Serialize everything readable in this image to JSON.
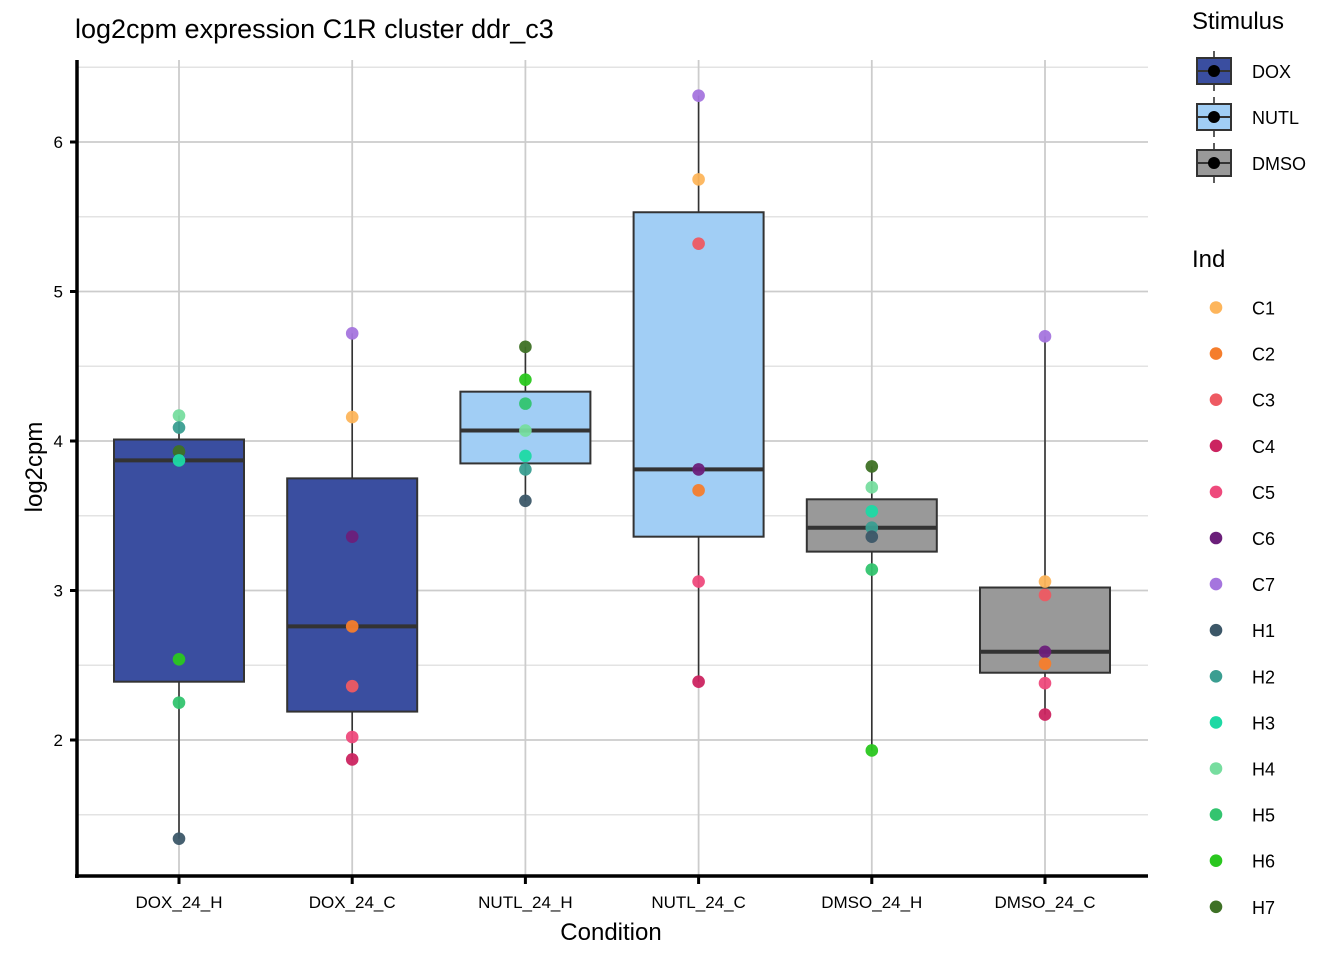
{
  "chart_data": {
    "type": "box",
    "title": "log2cpm expression C1R cluster ddr_c3",
    "xlabel": "Condition",
    "ylabel": "log2cpm",
    "ylim": [
      1.1,
      6.55
    ],
    "yticks": [
      2,
      3,
      4,
      5,
      6
    ],
    "ytick_labels": [
      "2",
      "3",
      "4",
      "5",
      "6"
    ],
    "grid": true,
    "categories": [
      "DOX_24_H",
      "DOX_24_C",
      "NUTL_24_H",
      "NUTL_24_C",
      "DMSO_24_H",
      "DMSO_24_C"
    ],
    "fill_legend": {
      "title": "Stimulus",
      "placement": "right",
      "entries": [
        {
          "label": "DOX",
          "color": "#3A4EA0"
        },
        {
          "label": "NUTL",
          "color": "#A1CEF5"
        },
        {
          "label": "DMSO",
          "color": "#999999"
        }
      ]
    },
    "color_legend": {
      "title": "Ind",
      "placement": "right",
      "entries": [
        {
          "label": "C1",
          "color": "#FDB55B"
        },
        {
          "label": "C2",
          "color": "#F57D2C"
        },
        {
          "label": "C3",
          "color": "#EE5A62"
        },
        {
          "label": "C4",
          "color": "#CB2460"
        },
        {
          "label": "C5",
          "color": "#EE4A7C"
        },
        {
          "label": "C6",
          "color": "#6B1F7A"
        },
        {
          "label": "C7",
          "color": "#A575DE"
        },
        {
          "label": "H1",
          "color": "#3C5768"
        },
        {
          "label": "H2",
          "color": "#3A9E91"
        },
        {
          "label": "H3",
          "color": "#1ED9A4"
        },
        {
          "label": "H4",
          "color": "#77DD9F"
        },
        {
          "label": "H5",
          "color": "#33C46F"
        },
        {
          "label": "H6",
          "color": "#2AC71F"
        },
        {
          "label": "H7",
          "color": "#3E7125"
        }
      ]
    },
    "boxes": [
      {
        "category": "DOX_24_H",
        "stimulus": "DOX",
        "q1": 2.39,
        "median": 3.87,
        "q3": 4.01,
        "whisker_low": 1.34,
        "whisker_high": 4.17
      },
      {
        "category": "DOX_24_C",
        "stimulus": "DOX",
        "q1": 2.19,
        "median": 2.76,
        "q3": 3.75,
        "whisker_low": 1.87,
        "whisker_high": 4.72
      },
      {
        "category": "NUTL_24_H",
        "stimulus": "NUTL",
        "q1": 3.85,
        "median": 4.07,
        "q3": 4.33,
        "whisker_low": 3.6,
        "whisker_high": 4.63
      },
      {
        "category": "NUTL_24_C",
        "stimulus": "NUTL",
        "q1": 3.36,
        "median": 3.81,
        "q3": 5.53,
        "whisker_low": 2.39,
        "whisker_high": 6.31
      },
      {
        "category": "DMSO_24_H",
        "stimulus": "DMSO",
        "q1": 3.26,
        "median": 3.42,
        "q3": 3.61,
        "whisker_low": 1.93,
        "whisker_high": 3.83
      },
      {
        "category": "DMSO_24_C",
        "stimulus": "DMSO",
        "q1": 2.45,
        "median": 2.59,
        "q3": 3.02,
        "whisker_low": 2.17,
        "whisker_high": 4.7
      }
    ],
    "points": [
      {
        "category": "DOX_24_H",
        "ind": "H4",
        "y": 4.17
      },
      {
        "category": "DOX_24_H",
        "ind": "H2",
        "y": 4.09
      },
      {
        "category": "DOX_24_H",
        "ind": "H7",
        "y": 3.93
      },
      {
        "category": "DOX_24_H",
        "ind": "H3",
        "y": 3.87
      },
      {
        "category": "DOX_24_H",
        "ind": "H6",
        "y": 2.54
      },
      {
        "category": "DOX_24_H",
        "ind": "H5",
        "y": 2.25
      },
      {
        "category": "DOX_24_H",
        "ind": "H1",
        "y": 1.34
      },
      {
        "category": "DOX_24_C",
        "ind": "C7",
        "y": 4.72
      },
      {
        "category": "DOX_24_C",
        "ind": "C1",
        "y": 4.16
      },
      {
        "category": "DOX_24_C",
        "ind": "C6",
        "y": 3.36
      },
      {
        "category": "DOX_24_C",
        "ind": "C2",
        "y": 2.76
      },
      {
        "category": "DOX_24_C",
        "ind": "C3",
        "y": 2.36
      },
      {
        "category": "DOX_24_C",
        "ind": "C5",
        "y": 2.02
      },
      {
        "category": "DOX_24_C",
        "ind": "C4",
        "y": 1.87
      },
      {
        "category": "NUTL_24_H",
        "ind": "H7",
        "y": 4.63
      },
      {
        "category": "NUTL_24_H",
        "ind": "H6",
        "y": 4.41
      },
      {
        "category": "NUTL_24_H",
        "ind": "H5",
        "y": 4.25
      },
      {
        "category": "NUTL_24_H",
        "ind": "H4",
        "y": 4.07
      },
      {
        "category": "NUTL_24_H",
        "ind": "H3",
        "y": 3.9
      },
      {
        "category": "NUTL_24_H",
        "ind": "H2",
        "y": 3.81
      },
      {
        "category": "NUTL_24_H",
        "ind": "H1",
        "y": 3.6
      },
      {
        "category": "NUTL_24_C",
        "ind": "C7",
        "y": 6.31
      },
      {
        "category": "NUTL_24_C",
        "ind": "C1",
        "y": 5.75
      },
      {
        "category": "NUTL_24_C",
        "ind": "C3",
        "y": 5.32
      },
      {
        "category": "NUTL_24_C",
        "ind": "C6",
        "y": 3.81
      },
      {
        "category": "NUTL_24_C",
        "ind": "C2",
        "y": 3.67
      },
      {
        "category": "NUTL_24_C",
        "ind": "C5",
        "y": 3.06
      },
      {
        "category": "NUTL_24_C",
        "ind": "C4",
        "y": 2.39
      },
      {
        "category": "DMSO_24_H",
        "ind": "H7",
        "y": 3.83
      },
      {
        "category": "DMSO_24_H",
        "ind": "H4",
        "y": 3.69
      },
      {
        "category": "DMSO_24_H",
        "ind": "H3",
        "y": 3.53
      },
      {
        "category": "DMSO_24_H",
        "ind": "H2",
        "y": 3.42
      },
      {
        "category": "DMSO_24_H",
        "ind": "H1",
        "y": 3.36
      },
      {
        "category": "DMSO_24_H",
        "ind": "H5",
        "y": 3.14
      },
      {
        "category": "DMSO_24_H",
        "ind": "H6",
        "y": 1.93
      },
      {
        "category": "DMSO_24_C",
        "ind": "C7",
        "y": 4.7
      },
      {
        "category": "DMSO_24_C",
        "ind": "C1",
        "y": 3.06
      },
      {
        "category": "DMSO_24_C",
        "ind": "C3",
        "y": 2.97
      },
      {
        "category": "DMSO_24_C",
        "ind": "C6",
        "y": 2.59
      },
      {
        "category": "DMSO_24_C",
        "ind": "C2",
        "y": 2.51
      },
      {
        "category": "DMSO_24_C",
        "ind": "C5",
        "y": 2.38
      },
      {
        "category": "DMSO_24_C",
        "ind": "C4",
        "y": 2.17
      }
    ]
  }
}
